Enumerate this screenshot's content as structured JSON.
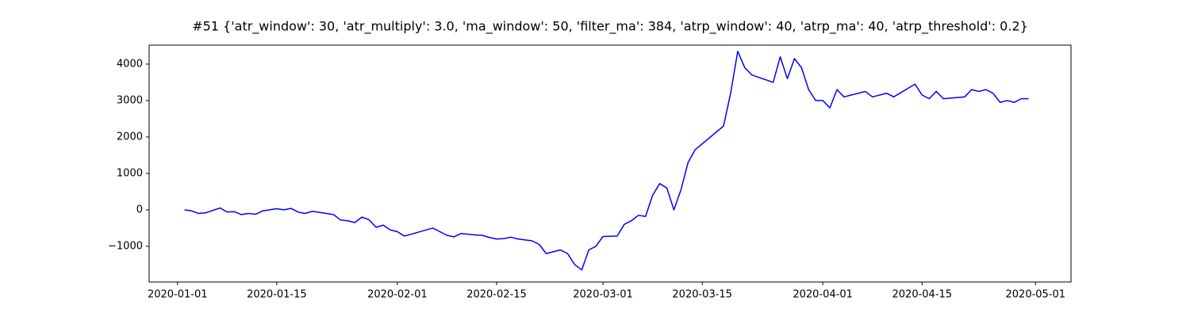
{
  "chart_data": {
    "type": "line",
    "title": "#51 {'atr_window': 30, 'atr_multiply': 3.0, 'ma_window': 50, 'filter_ma': 384, 'atrp_window': 40, 'atrp_ma': 40, 'atrp_threshold': 0.2}",
    "x": [
      "2020-01-02",
      "2020-01-03",
      "2020-01-04",
      "2020-01-05",
      "2020-01-07",
      "2020-01-08",
      "2020-01-09",
      "2020-01-10",
      "2020-01-11",
      "2020-01-12",
      "2020-01-13",
      "2020-01-15",
      "2020-01-16",
      "2020-01-17",
      "2020-01-18",
      "2020-01-19",
      "2020-01-20",
      "2020-01-23",
      "2020-01-24",
      "2020-01-25",
      "2020-01-26",
      "2020-01-27",
      "2020-01-28",
      "2020-01-29",
      "2020-01-30",
      "2020-01-31",
      "2020-02-01",
      "2020-02-02",
      "2020-02-06",
      "2020-02-07",
      "2020-02-08",
      "2020-02-09",
      "2020-02-10",
      "2020-02-12",
      "2020-02-13",
      "2020-02-14",
      "2020-02-15",
      "2020-02-16",
      "2020-02-17",
      "2020-02-18",
      "2020-02-20",
      "2020-02-21",
      "2020-02-22",
      "2020-02-24",
      "2020-02-25",
      "2020-02-26",
      "2020-02-27",
      "2020-02-28",
      "2020-02-29",
      "2020-03-01",
      "2020-03-03",
      "2020-03-04",
      "2020-03-05",
      "2020-03-06",
      "2020-03-07",
      "2020-03-08",
      "2020-03-09",
      "2020-03-10",
      "2020-03-11",
      "2020-03-12",
      "2020-03-13",
      "2020-03-14",
      "2020-03-18",
      "2020-03-19",
      "2020-03-20",
      "2020-03-21",
      "2020-03-22",
      "2020-03-25",
      "2020-03-26",
      "2020-03-27",
      "2020-03-28",
      "2020-03-29",
      "2020-03-30",
      "2020-03-31",
      "2020-04-01",
      "2020-04-02",
      "2020-04-03",
      "2020-04-04",
      "2020-04-05",
      "2020-04-07",
      "2020-04-08",
      "2020-04-10",
      "2020-04-11",
      "2020-04-14",
      "2020-04-15",
      "2020-04-16",
      "2020-04-17",
      "2020-04-18",
      "2020-04-21",
      "2020-04-22",
      "2020-04-23",
      "2020-04-24",
      "2020-04-25",
      "2020-04-26",
      "2020-04-27",
      "2020-04-28",
      "2020-04-29",
      "2020-04-30"
    ],
    "series": [
      {
        "color": "#0000ff",
        "values": [
          0,
          -30,
          -100,
          -80,
          50,
          -60,
          -50,
          -130,
          -100,
          -120,
          -30,
          30,
          0,
          40,
          -60,
          -100,
          -40,
          -130,
          -280,
          -300,
          -350,
          -200,
          -270,
          -480,
          -420,
          -550,
          -600,
          -720,
          -500,
          -600,
          -700,
          -740,
          -650,
          -690,
          -700,
          -760,
          -800,
          -790,
          -750,
          -800,
          -850,
          -950,
          -1200,
          -1100,
          -1200,
          -1500,
          -1650,
          -1100,
          -1000,
          -730,
          -720,
          -400,
          -300,
          -150,
          -180,
          400,
          720,
          600,
          0,
          550,
          1300,
          1650,
          2300,
          3200,
          4350,
          3900,
          3700,
          3500,
          4200,
          3600,
          4150,
          3900,
          3300,
          3000,
          3000,
          2800,
          3300,
          3100,
          3150,
          3250,
          3100,
          3200,
          3100,
          3450,
          3150,
          3050,
          3250,
          3050,
          3100,
          3300,
          3250,
          3300,
          3200,
          2950,
          3000,
          2950,
          3050,
          3050
        ]
      }
    ],
    "xlim": [
      "2019-12-28",
      "2020-05-06"
    ],
    "xticks": [
      "2020-01-01",
      "2020-01-15",
      "2020-02-01",
      "2020-02-15",
      "2020-03-01",
      "2020-03-15",
      "2020-04-01",
      "2020-04-15",
      "2020-05-01"
    ],
    "ylim": [
      -1980,
      4520
    ],
    "yticks": [
      {
        "value": -1000,
        "label": "−1000"
      },
      0,
      1000,
      2000,
      3000,
      4000
    ]
  }
}
